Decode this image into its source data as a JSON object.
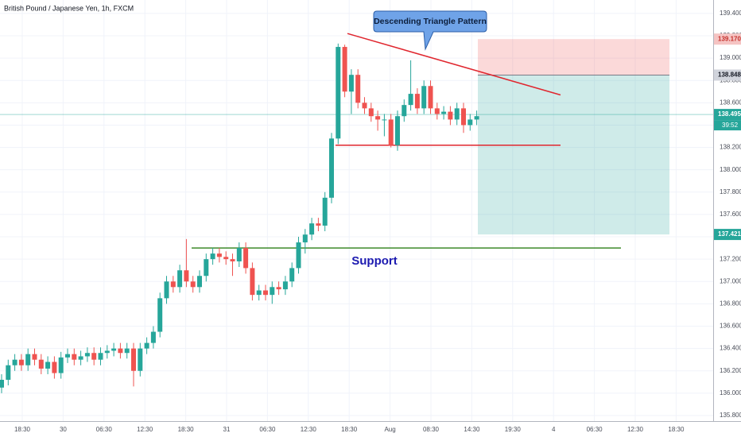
{
  "chart_data": {
    "type": "candlestick",
    "title": "British Pound / Japanese Yen, 1h, FXCM",
    "open": [
      136.05,
      136.12,
      136.25,
      136.3,
      136.25,
      136.35,
      136.3,
      136.22,
      136.28,
      136.18,
      136.32,
      136.35,
      136.3,
      136.33,
      136.36,
      136.3,
      136.36,
      136.38,
      136.4,
      136.36,
      136.4,
      136.2,
      136.4,
      136.45,
      136.55,
      136.85,
      137.0,
      136.95,
      137.1,
      137.0,
      136.95,
      137.05,
      137.2,
      137.25,
      137.22,
      137.2,
      137.18,
      137.3,
      137.12,
      136.88,
      136.92,
      136.88,
      136.95,
      136.93,
      137.0,
      137.12,
      137.35,
      137.42,
      137.52,
      137.5,
      137.75,
      138.28,
      139.1,
      138.7,
      138.85,
      138.6,
      138.55,
      138.48,
      138.45,
      138.45,
      138.22,
      138.48,
      138.58,
      138.68,
      138.55,
      138.75,
      138.55,
      138.5,
      138.52,
      138.45,
      138.55,
      138.4,
      138.45
    ],
    "high": [
      136.17,
      136.3,
      136.35,
      136.35,
      136.4,
      136.4,
      136.35,
      136.33,
      136.33,
      136.37,
      136.4,
      136.4,
      136.38,
      136.41,
      136.41,
      136.41,
      136.43,
      136.45,
      136.45,
      136.45,
      136.45,
      136.45,
      136.5,
      136.6,
      136.9,
      137.05,
      137.05,
      137.15,
      137.38,
      137.05,
      137.1,
      137.25,
      137.3,
      137.3,
      137.27,
      137.25,
      137.35,
      137.35,
      137.17,
      136.97,
      136.97,
      137.0,
      137.0,
      137.05,
      137.17,
      137.4,
      137.47,
      137.57,
      137.57,
      137.8,
      138.33,
      139.13,
      139.12,
      138.9,
      138.9,
      138.65,
      138.6,
      138.53,
      138.5,
      138.5,
      138.53,
      138.63,
      138.98,
      138.73,
      138.8,
      138.8,
      138.6,
      138.57,
      138.57,
      138.6,
      138.6,
      138.5,
      138.53
    ],
    "low": [
      136.0,
      136.07,
      136.2,
      136.2,
      136.2,
      136.25,
      136.17,
      136.17,
      136.13,
      136.13,
      136.27,
      136.25,
      136.25,
      136.28,
      136.25,
      136.25,
      136.31,
      136.33,
      136.31,
      136.31,
      136.06,
      136.15,
      136.35,
      136.4,
      136.5,
      136.8,
      136.9,
      136.9,
      136.95,
      136.9,
      136.9,
      137.0,
      137.15,
      137.17,
      137.15,
      137.05,
      137.13,
      137.07,
      136.83,
      136.83,
      136.83,
      136.8,
      136.88,
      136.88,
      136.95,
      137.07,
      137.25,
      137.37,
      137.45,
      137.45,
      137.7,
      138.23,
      138.65,
      138.5,
      138.55,
      138.5,
      138.43,
      138.35,
      138.3,
      138.2,
      138.17,
      138.43,
      138.53,
      138.5,
      138.5,
      138.5,
      138.45,
      138.45,
      138.4,
      138.4,
      138.33,
      138.35,
      138.4
    ],
    "close": [
      136.12,
      136.25,
      136.3,
      136.25,
      136.35,
      136.3,
      136.22,
      136.28,
      136.18,
      136.32,
      136.35,
      136.3,
      136.33,
      136.36,
      136.3,
      136.36,
      136.38,
      136.4,
      136.36,
      136.4,
      136.2,
      136.4,
      136.45,
      136.55,
      136.85,
      137.0,
      136.95,
      137.1,
      137.0,
      136.95,
      137.05,
      137.2,
      137.25,
      137.22,
      137.2,
      137.18,
      137.3,
      137.12,
      136.88,
      136.92,
      136.88,
      136.95,
      136.93,
      137.0,
      137.12,
      137.35,
      137.42,
      137.52,
      137.5,
      137.75,
      138.28,
      139.1,
      138.7,
      138.85,
      138.6,
      138.55,
      138.48,
      138.45,
      138.45,
      138.22,
      138.48,
      138.58,
      138.68,
      138.55,
      138.75,
      138.55,
      138.5,
      138.52,
      138.45,
      138.55,
      138.4,
      138.45,
      138.48
    ],
    "up_color": "#26a69a",
    "down_color": "#ef5350",
    "ylim": [
      135.75,
      139.52
    ],
    "yticks": [
      {
        "value": 139.4,
        "label": "139.400"
      },
      {
        "value": 139.2,
        "label": "139.200"
      },
      {
        "value": 139.0,
        "label": "139.000"
      },
      {
        "value": 138.8,
        "label": "138.800"
      },
      {
        "value": 138.6,
        "label": "138.600"
      },
      {
        "value": 138.4,
        "label": "138.400"
      },
      {
        "value": 138.2,
        "label": "138.200"
      },
      {
        "value": 138.0,
        "label": "138.000"
      },
      {
        "value": 137.8,
        "label": "137.800"
      },
      {
        "value": 137.6,
        "label": "137.600"
      },
      {
        "value": 137.4,
        "label": "137.400"
      },
      {
        "value": 137.2,
        "label": "137.200"
      },
      {
        "value": 137.0,
        "label": "137.000"
      },
      {
        "value": 136.8,
        "label": "136.800"
      },
      {
        "value": 136.6,
        "label": "136.600"
      },
      {
        "value": 136.4,
        "label": "136.400"
      },
      {
        "value": 136.2,
        "label": "136.200"
      },
      {
        "value": 136.0,
        "label": "136.000"
      },
      {
        "value": 135.8,
        "label": "135.800"
      }
    ],
    "xticks": [
      "18:30",
      "30",
      "06:30",
      "12:30",
      "18:30",
      "31",
      "06:30",
      "12:30",
      "18:30",
      "Aug",
      "08:30",
      "14:30",
      "19:30",
      "4",
      "06:30",
      "12:30",
      "18:30"
    ],
    "grid": true,
    "stop_loss": {
      "value": 139.17,
      "label": "139.170"
    },
    "entry": {
      "value": 138.848,
      "label": "138.848"
    },
    "take_profit": {
      "value": 137.421,
      "label": "137.421"
    },
    "last_price": {
      "value": 138.495,
      "label": "138.495"
    },
    "countdown": "39:52",
    "triangle_upper": [
      139.22,
      138.67
    ],
    "triangle_lower": 138.22,
    "support": 137.3,
    "callout": "Descending Triangle Pattern",
    "support_label": "Support"
  }
}
